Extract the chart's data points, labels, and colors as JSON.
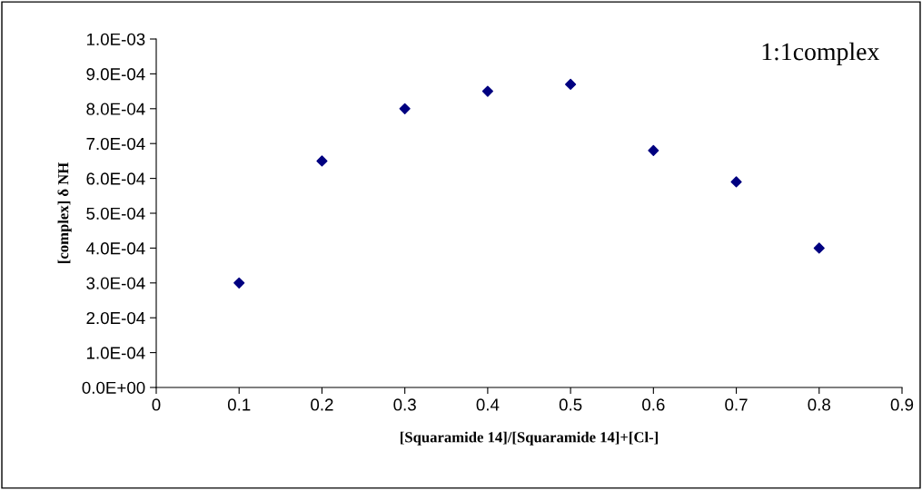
{
  "chart_data": {
    "type": "scatter",
    "xlabel": "[Squaramide 14]/[Squaramide 14]+[Cl-]",
    "ylabel": "[complex] δ NH",
    "annotations": [
      "1:1complex"
    ],
    "x": [
      0.1,
      0.2,
      0.3,
      0.4,
      0.5,
      0.6,
      0.7,
      0.8
    ],
    "series": [
      {
        "color": "#000080",
        "values": [
          0.0003,
          0.00065,
          0.0008,
          0.00085,
          0.00087,
          0.00068,
          0.00059,
          0.0004
        ]
      }
    ],
    "marker": "diamond",
    "xlim": [
      0,
      0.9
    ],
    "xticks": [
      0,
      0.1,
      0.2,
      0.3,
      0.4,
      0.5,
      0.6,
      0.7,
      0.8,
      0.9
    ],
    "ylim": [
      0,
      0.001
    ],
    "yticks": [
      {
        "value": 0,
        "label": "0.0E+00"
      },
      {
        "value": 0.0001,
        "label": "1.0E-04"
      },
      {
        "value": 0.0002,
        "label": "2.0E-04"
      },
      {
        "value": 0.0003,
        "label": "3.0E-04"
      },
      {
        "value": 0.0004,
        "label": "4.0E-04"
      },
      {
        "value": 0.0005,
        "label": "5.0E-04"
      },
      {
        "value": 0.0006,
        "label": "6.0E-04"
      },
      {
        "value": 0.0007,
        "label": "7.0E-04"
      },
      {
        "value": 0.0008,
        "label": "8.0E-04"
      },
      {
        "value": 0.0009,
        "label": "9.0E-04"
      },
      {
        "value": 0.001,
        "label": "1.0E-03"
      }
    ],
    "grid": false
  }
}
